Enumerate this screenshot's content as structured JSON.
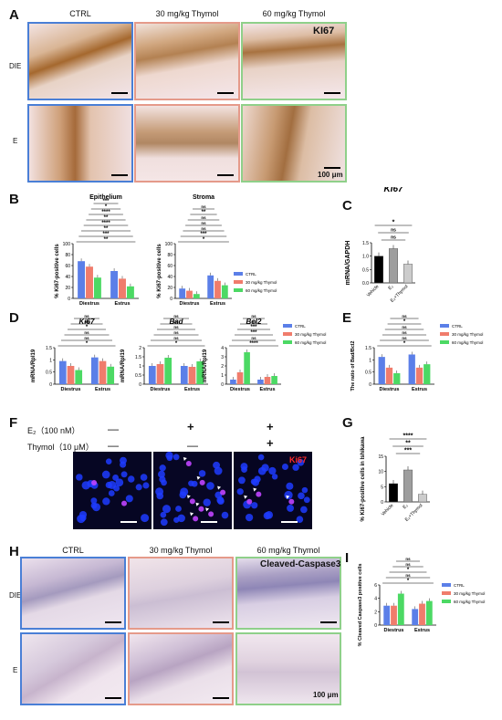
{
  "panel_a": {
    "letter": "A",
    "columns": [
      "CTRL",
      "30 mg/kg Thymol",
      "60 mg/kg Thymol"
    ],
    "rows": [
      "DIE",
      "E"
    ],
    "marker": "KI67",
    "scale": "100 μm"
  },
  "panel_b": {
    "letter": "B",
    "ylabel": "% Ki67-positive cells",
    "legend": [
      "CTRL",
      "30 mg/kg Thymol",
      "60 mg/kg Thymol"
    ],
    "colors": [
      "#5b7fe8",
      "#f07c6c",
      "#4cd964"
    ]
  },
  "panel_c": {
    "letter": "C"
  },
  "panel_d": {
    "letter": "D"
  },
  "panel_e": {
    "letter": "E"
  },
  "panel_f": {
    "letter": "F",
    "e2_label": "E₂（100 nM）",
    "thymol_label": "Thymol（10 μM）",
    "e2_states": [
      "—",
      "+",
      "+"
    ],
    "thymol_states": [
      "—",
      "—",
      "+"
    ],
    "marker": "Ki67"
  },
  "panel_g": {
    "letter": "G"
  },
  "panel_h": {
    "letter": "H",
    "columns": [
      "CTRL",
      "30 mg/kg Thymol",
      "60 mg/kg Thymol"
    ],
    "rows": [
      "DIE",
      "E"
    ],
    "marker": "Cleaved-Caspase3",
    "scale": "100 μm"
  },
  "panel_i": {
    "letter": "I"
  },
  "chart_data": [
    {
      "id": "B-epithelium",
      "type": "bar",
      "title": "Epithelium",
      "ylabel": "% Ki67-positive cells",
      "categories": [
        "Diestrus",
        "Estrus"
      ],
      "yticks": [
        0,
        20,
        40,
        60,
        80,
        100
      ],
      "ylim": [
        0,
        100
      ],
      "series": [
        {
          "name": "CTRL",
          "color": "#5b7fe8",
          "values": [
            68,
            50
          ]
        },
        {
          "name": "30 mg/kg Thymol",
          "color": "#f07c6c",
          "values": [
            58,
            36
          ]
        },
        {
          "name": "60 mg/kg Thymol",
          "color": "#4cd964",
          "values": [
            38,
            22
          ]
        }
      ],
      "significance": [
        "**",
        "***",
        "**",
        "****",
        "**",
        "****",
        "*",
        "***"
      ]
    },
    {
      "id": "B-stroma",
      "type": "bar",
      "title": "Stroma",
      "ylabel": "% Ki67-positive cells",
      "categories": [
        "Diestrus",
        "Estrus"
      ],
      "yticks": [
        0,
        20,
        40,
        60,
        80,
        100
      ],
      "ylim": [
        0,
        100
      ],
      "series": [
        {
          "name": "CTRL",
          "color": "#5b7fe8",
          "values": [
            18,
            42
          ]
        },
        {
          "name": "30 mg/kg Thymol",
          "color": "#f07c6c",
          "values": [
            14,
            32
          ]
        },
        {
          "name": "60 mg/kg Thymol",
          "color": "#4cd964",
          "values": [
            8,
            24
          ]
        }
      ],
      "significance": [
        "*",
        "***",
        "ns",
        "ns",
        "ns",
        "**",
        "ns"
      ]
    },
    {
      "id": "C",
      "type": "bar",
      "title": "KI67",
      "ylabel": "mRNA/GAPDH",
      "categories": [
        "Vehicle",
        "E₂",
        "E₂+Thymol"
      ],
      "yticks": [
        0.0,
        0.5,
        1.0,
        1.5
      ],
      "ylim": [
        0,
        1.5
      ],
      "values": [
        1.0,
        1.28,
        0.7
      ],
      "colors": [
        "#000000",
        "#9e9e9e",
        "#cccccc"
      ],
      "significance": [
        "ns",
        "ns",
        "*"
      ]
    },
    {
      "id": "D-Ki67",
      "type": "bar",
      "title": "Ki67",
      "ylabel": "mRNA/Rpl19",
      "categories": [
        "Diestrus",
        "Estrus"
      ],
      "yticks": [
        0.0,
        0.5,
        1.0,
        1.5
      ],
      "ylim": [
        0,
        1.5
      ],
      "series": [
        {
          "name": "CTRL",
          "color": "#5b7fe8",
          "values": [
            0.95,
            1.1
          ]
        },
        {
          "name": "30 mg/kg Thymol",
          "color": "#f07c6c",
          "values": [
            0.75,
            0.95
          ]
        },
        {
          "name": "60 mg/kg Thymol",
          "color": "#4cd964",
          "values": [
            0.58,
            0.72
          ]
        }
      ],
      "significance": [
        "*",
        "ns",
        "ns",
        "*",
        "ns",
        "ns"
      ]
    },
    {
      "id": "D-Bad",
      "type": "bar",
      "title": "Bad",
      "ylabel": "mRNA/Rpl19",
      "categories": [
        "Diestrus",
        "Estrus"
      ],
      "yticks": [
        0.0,
        0.5,
        1.0,
        1.5,
        2.0
      ],
      "ylim": [
        0,
        2.0
      ],
      "series": [
        {
          "name": "CTRL",
          "color": "#5b7fe8",
          "values": [
            1.0,
            1.0
          ]
        },
        {
          "name": "30 mg/kg Thymol",
          "color": "#f07c6c",
          "values": [
            1.1,
            0.95
          ]
        },
        {
          "name": "60 mg/kg Thymol",
          "color": "#4cd964",
          "values": [
            1.45,
            1.25
          ]
        }
      ],
      "significance": [
        "*",
        "ns",
        "ns",
        "ns",
        "ns",
        "ns"
      ]
    },
    {
      "id": "D-Bcl2",
      "type": "bar",
      "title": "Bcl2",
      "ylabel": "mRNA/Rpl19",
      "categories": [
        "Diestrus",
        "Estrus"
      ],
      "yticks": [
        0,
        1,
        2,
        3,
        4
      ],
      "ylim": [
        0,
        4
      ],
      "series": [
        {
          "name": "CTRL",
          "color": "#5b7fe8",
          "values": [
            0.5,
            0.5
          ]
        },
        {
          "name": "30 mg/kg Thymol",
          "color": "#f07c6c",
          "values": [
            1.3,
            0.8
          ]
        },
        {
          "name": "60 mg/kg Thymol",
          "color": "#4cd964",
          "values": [
            3.5,
            0.9
          ]
        }
      ],
      "significance": [
        "****",
        "ns",
        "***",
        "***",
        "ns",
        "ns"
      ]
    },
    {
      "id": "E",
      "type": "bar",
      "ylabel": "The ratio of Bad/Bcl2",
      "categories": [
        "Diestrus",
        "Estrus"
      ],
      "yticks": [
        0.0,
        0.5,
        1.0,
        1.5
      ],
      "ylim": [
        0,
        1.5
      ],
      "series": [
        {
          "name": "CTRL",
          "color": "#5b7fe8",
          "values": [
            1.12,
            1.22
          ]
        },
        {
          "name": "30 mg/kg Thymol",
          "color": "#f07c6c",
          "values": [
            0.68,
            0.68
          ]
        },
        {
          "name": "60 mg/kg Thymol",
          "color": "#4cd964",
          "values": [
            0.45,
            0.82
          ]
        }
      ],
      "significance": [
        "*",
        "ns",
        "ns",
        "ns",
        "*",
        "ns",
        "ns"
      ]
    },
    {
      "id": "G",
      "type": "bar",
      "ylabel": "% Ki67-positive cells in Ishikawa",
      "categories": [
        "Vehicle",
        "E₂",
        "E₂+Thymol"
      ],
      "yticks": [
        0,
        5,
        10,
        15
      ],
      "ylim": [
        0,
        15
      ],
      "values": [
        6.0,
        10.5,
        2.5
      ],
      "colors": [
        "#000000",
        "#9e9e9e",
        "#cccccc"
      ],
      "significance": [
        "***",
        "**",
        "****"
      ]
    },
    {
      "id": "I",
      "type": "bar",
      "ylabel": "% Cleaved Caspase3 positive cells",
      "categories": [
        "Diestrus",
        "Estrus"
      ],
      "yticks": [
        0,
        2,
        4,
        6
      ],
      "ylim": [
        0,
        6
      ],
      "series": [
        {
          "name": "CTRL",
          "color": "#5b7fe8",
          "values": [
            2.9,
            2.4
          ]
        },
        {
          "name": "30 mg/kg Thymol",
          "color": "#f07c6c",
          "values": [
            2.9,
            3.2
          ]
        },
        {
          "name": "60 mg/kg Thymol",
          "color": "#4cd964",
          "values": [
            4.7,
            3.6
          ]
        }
      ],
      "significance": [
        "*",
        "ns",
        "*",
        "ns",
        "ns"
      ]
    }
  ]
}
